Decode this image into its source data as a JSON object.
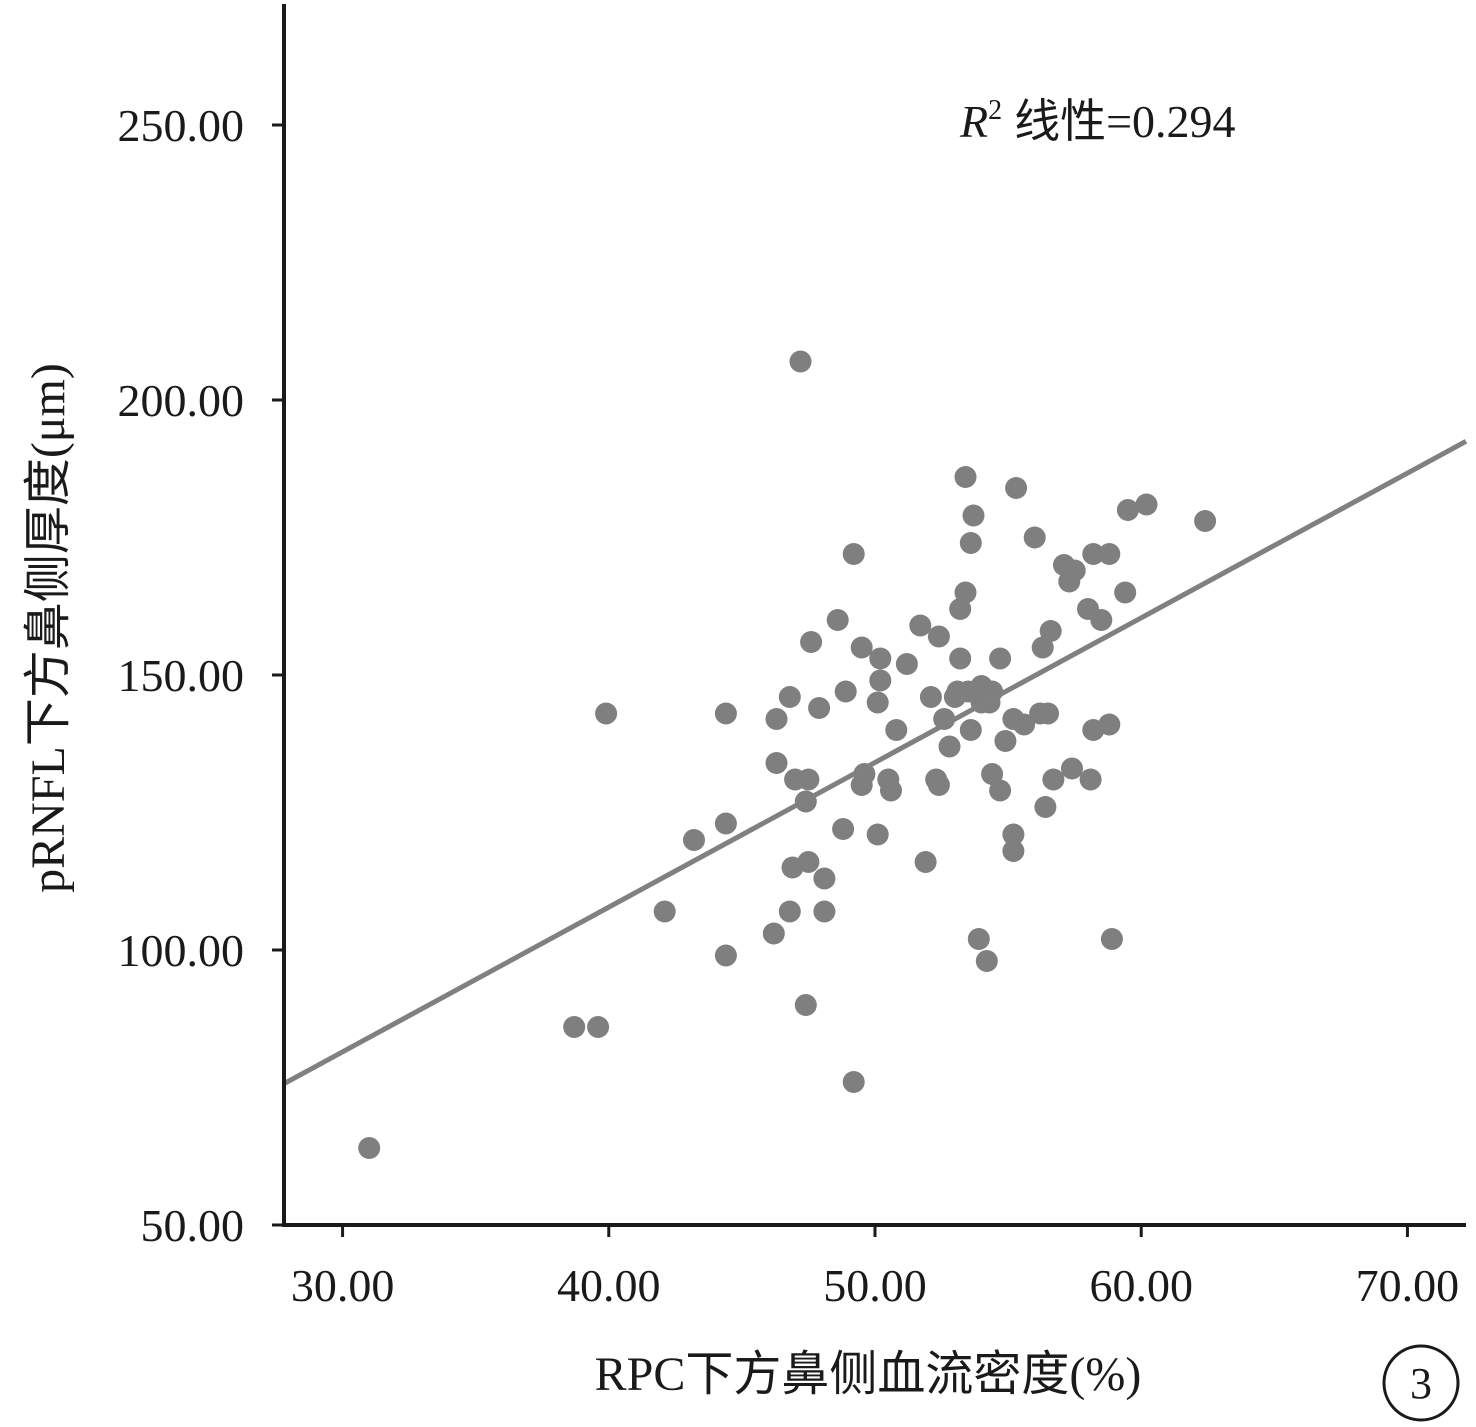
{
  "chart_data": {
    "type": "scatter",
    "xlabel": "RPC下方鼻侧血流密度(%)",
    "ylabel": "pRNFL下方鼻侧厚度(μm)",
    "xlim": [
      27.8,
      72.2
    ],
    "ylim": [
      50,
      272
    ],
    "x_ticks": [
      "30.00",
      "40.00",
      "50.00",
      "60.00",
      "70.00"
    ],
    "y_ticks": [
      "50.00",
      "100.00",
      "150.00",
      "200.00",
      "250.00"
    ],
    "annotation": {
      "r_symbol": "R",
      "r_sup": "2",
      "text": "线性=0.294"
    },
    "panel_label": "3",
    "point_color": "#7f7f7f",
    "line_color": "#808080",
    "trendline": {
      "x": [
        27.8,
        72.2
      ],
      "y": [
        75.7,
        192.5
      ]
    },
    "points": [
      [
        31.0,
        64
      ],
      [
        38.7,
        86
      ],
      [
        39.6,
        86
      ],
      [
        39.9,
        143
      ],
      [
        42.1,
        107
      ],
      [
        43.2,
        120
      ],
      [
        44.4,
        99
      ],
      [
        44.4,
        123
      ],
      [
        44.4,
        143
      ],
      [
        46.2,
        103
      ],
      [
        46.3,
        134
      ],
      [
        46.3,
        142
      ],
      [
        46.8,
        107
      ],
      [
        46.8,
        146
      ],
      [
        46.9,
        115
      ],
      [
        47.0,
        131
      ],
      [
        47.2,
        207
      ],
      [
        47.4,
        127
      ],
      [
        47.4,
        90
      ],
      [
        47.5,
        116
      ],
      [
        47.5,
        131
      ],
      [
        47.6,
        156
      ],
      [
        47.9,
        144
      ],
      [
        48.1,
        107
      ],
      [
        48.1,
        113
      ],
      [
        48.6,
        160
      ],
      [
        48.8,
        122
      ],
      [
        48.9,
        147
      ],
      [
        49.2,
        76
      ],
      [
        49.2,
        172
      ],
      [
        49.5,
        155
      ],
      [
        49.5,
        130
      ],
      [
        49.6,
        132
      ],
      [
        50.1,
        121
      ],
      [
        50.1,
        145
      ],
      [
        50.2,
        149
      ],
      [
        50.2,
        153
      ],
      [
        50.5,
        131
      ],
      [
        50.6,
        129
      ],
      [
        50.8,
        140
      ],
      [
        51.2,
        152
      ],
      [
        51.7,
        159
      ],
      [
        51.9,
        116
      ],
      [
        52.1,
        146
      ],
      [
        52.3,
        131
      ],
      [
        52.4,
        130
      ],
      [
        52.4,
        157
      ],
      [
        52.6,
        142
      ],
      [
        52.8,
        137
      ],
      [
        53.0,
        146
      ],
      [
        53.1,
        147
      ],
      [
        53.2,
        153
      ],
      [
        53.2,
        162
      ],
      [
        53.4,
        165
      ],
      [
        53.4,
        186
      ],
      [
        53.5,
        147
      ],
      [
        53.6,
        140
      ],
      [
        53.6,
        174
      ],
      [
        53.7,
        179
      ],
      [
        53.8,
        147
      ],
      [
        53.9,
        102
      ],
      [
        54.0,
        145
      ],
      [
        54.0,
        148
      ],
      [
        54.2,
        98
      ],
      [
        54.3,
        145
      ],
      [
        54.4,
        132
      ],
      [
        54.4,
        147
      ],
      [
        54.7,
        129
      ],
      [
        54.7,
        153
      ],
      [
        54.9,
        138
      ],
      [
        55.2,
        118
      ],
      [
        55.2,
        121
      ],
      [
        55.2,
        142
      ],
      [
        55.3,
        184
      ],
      [
        55.6,
        141
      ],
      [
        56.0,
        175
      ],
      [
        56.2,
        143
      ],
      [
        56.3,
        155
      ],
      [
        56.4,
        126
      ],
      [
        56.5,
        143
      ],
      [
        56.6,
        158
      ],
      [
        56.7,
        131
      ],
      [
        57.1,
        170
      ],
      [
        57.3,
        167
      ],
      [
        57.4,
        133
      ],
      [
        57.5,
        169
      ],
      [
        58.0,
        162
      ],
      [
        58.1,
        131
      ],
      [
        58.2,
        140
      ],
      [
        58.2,
        172
      ],
      [
        58.5,
        160
      ],
      [
        58.8,
        141
      ],
      [
        58.8,
        172
      ],
      [
        58.9,
        102
      ],
      [
        59.4,
        165
      ],
      [
        59.5,
        180
      ],
      [
        60.2,
        181
      ],
      [
        62.4,
        178
      ]
    ]
  }
}
